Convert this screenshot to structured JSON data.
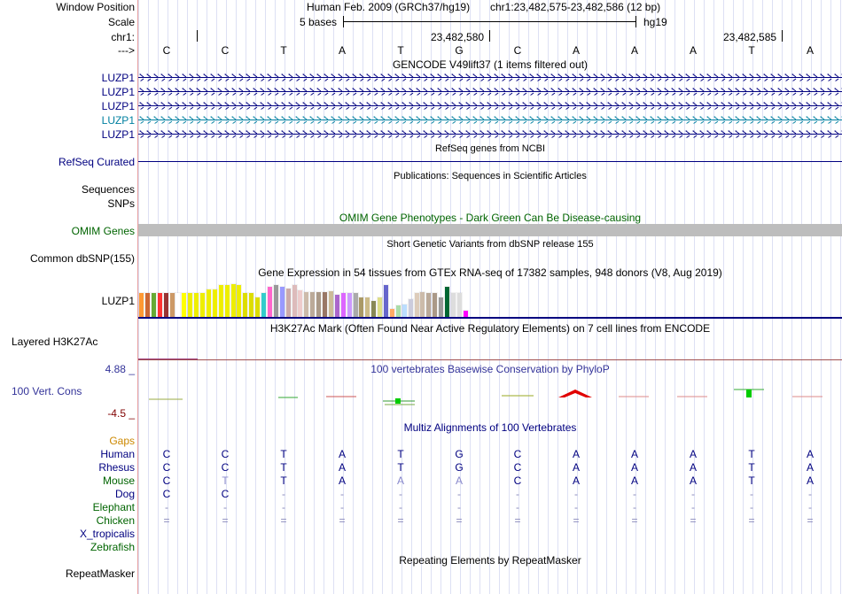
{
  "colors": {
    "navy": "#000080",
    "green": "#006400",
    "gaps": "#cc8800",
    "teal": "#0080a0",
    "conservation": "#333399",
    "maroon": "#800000"
  },
  "sidebar": {
    "window_position": "Window Position",
    "scale": "Scale",
    "chr": "chr1:",
    "arrow": "--->",
    "gene_labels": [
      "LUZP1",
      "LUZP1",
      "LUZP1",
      "LUZP1",
      "LUZP1"
    ],
    "refseq": "RefSeq Curated",
    "sequences": "Sequences",
    "snps": "SNPs",
    "omim_genes": "OMIM Genes",
    "common_dbsnp": "Common dbSNP(155)",
    "gtex_gene": "LUZP1",
    "layered": "Layered H3K27Ac",
    "cons_max": "4.88 _",
    "cons_label": "100 Vert. Cons",
    "cons_min": "-4.5 _",
    "gaps": "Gaps",
    "species": [
      "Human",
      "Rhesus",
      "Mouse",
      "Dog",
      "Elephant",
      "Chicken",
      "X_tropicalis",
      "Zebrafish"
    ],
    "repeatmasker": "RepeatMasker"
  },
  "header": {
    "assembly": "Human Feb. 2009 (GRCh37/hg19)",
    "position": "chr1:23,482,575-23,482,586 (12 bp)",
    "scale_text": "5 bases",
    "scale_db": "hg19",
    "coord_1": "23,482,580",
    "coord_2": "23,482,585"
  },
  "bases": [
    "C",
    "C",
    "T",
    "A",
    "T",
    "G",
    "C",
    "A",
    "A",
    "A",
    "T",
    "A"
  ],
  "tracks": {
    "gencode": "GENCODE V49lift37 (1 items filtered out)",
    "refseq": "RefSeq genes from NCBI",
    "publications": "Publications: Sequences in Scientific Articles",
    "omim": "OMIM Gene Phenotypes - Dark Green Can Be Disease-causing",
    "snp": "Short Genetic Variants from dbSNP release 155",
    "gtex": "Gene Expression in 54 tissues from GTEx RNA-seq of 17382 samples, 948 donors (V8, Aug 2019)",
    "h3k27ac": "H3K27Ac Mark (Often Found Near Active Regulatory Elements) on 7 cell lines from ENCODE",
    "conservation": "100 vertebrates Basewise Conservation by PhyloP",
    "multiz": "Multiz Alignments of 100 Vertebrates",
    "repeat": "Repeating Elements by RepeatMasker"
  },
  "alignment": {
    "Human": [
      "C",
      "C",
      "T",
      "A",
      "T",
      "G",
      "C",
      "A",
      "A",
      "A",
      "T",
      "A"
    ],
    "Rhesus": [
      "C",
      "C",
      "T",
      "A",
      "T",
      "G",
      "C",
      "A",
      "A",
      "A",
      "T",
      "A"
    ],
    "Mouse": [
      "C",
      "T",
      "T",
      "A",
      "A",
      "A",
      "C",
      "A",
      "A",
      "A",
      "T",
      "A"
    ],
    "Dog": [
      "C",
      "C",
      "-",
      "-",
      "-",
      "-",
      "-",
      "-",
      "-",
      "-",
      "-",
      "-"
    ],
    "Elephant": [
      "-",
      "-",
      "-",
      "-",
      "-",
      "-",
      "-",
      "-",
      "-",
      "-",
      "-",
      "-"
    ],
    "Chicken": [
      "=",
      "=",
      "=",
      "=",
      "=",
      "=",
      "=",
      "=",
      "=",
      "=",
      "=",
      "="
    ]
  },
  "mouse_diff": [
    false,
    true,
    false,
    false,
    true,
    true,
    false,
    false,
    false,
    false,
    false,
    false
  ],
  "gtex_values": [
    30,
    30,
    30,
    30,
    30,
    30,
    30,
    30,
    30,
    30,
    30,
    35,
    35,
    40,
    40,
    42,
    40,
    30,
    30,
    25,
    30,
    38,
    40,
    38,
    36,
    40,
    34,
    32,
    32,
    32,
    32,
    33,
    28,
    30,
    30,
    30,
    25,
    25,
    20,
    25,
    40,
    10,
    15,
    16,
    23,
    30,
    32,
    30,
    30,
    25,
    38,
    30,
    30,
    8
  ],
  "gtex_colors": [
    "#ff9933",
    "#cc6633",
    "#66aa33",
    "#ff3333",
    "#993333",
    "#cc9966",
    "#ffffff",
    "#ffff00",
    "#eeee00",
    "#eeee00",
    "#eeee00",
    "#eeee00",
    "#eeee00",
    "#eeee00",
    "#eeee00",
    "#eeee00",
    "#eeee00",
    "#dddd00",
    "#dddd00",
    "#dddd00",
    "#33cccc",
    "#ff66cc",
    "#999999",
    "#9999ff",
    "#ccaaaa",
    "#ddbbbb",
    "#eecccc",
    "#ccbbaa",
    "#bbaa99",
    "#aa9988",
    "#997766",
    "#ccbb99",
    "#aa66cc",
    "#dd66ff",
    "#cc99ff",
    "#aaaaaa",
    "#aa9966",
    "#ccbb88",
    "#888855",
    "#dddd88",
    "#6666cc",
    "#ffaa66",
    "#aaddaa",
    "#bbddff",
    "#ccccdd",
    "#ddccbb",
    "#ccbbaa",
    "#bbaa99",
    "#aa9988",
    "#999999",
    "#006633",
    "#dddddd",
    "#dddddd",
    "#ff00ff"
  ]
}
